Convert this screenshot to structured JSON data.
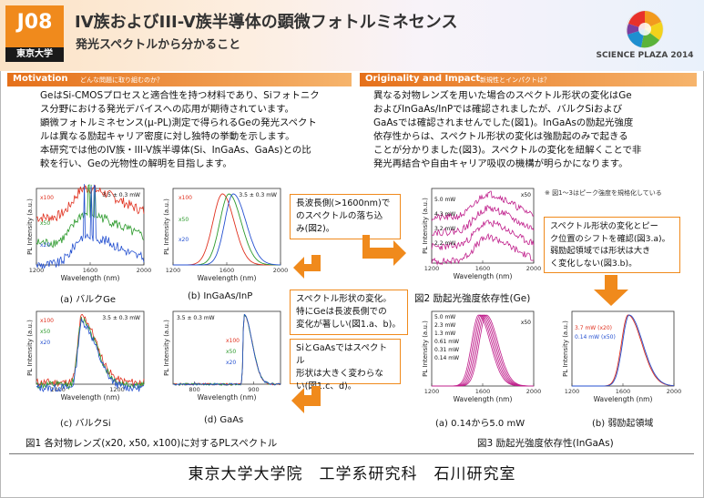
{
  "header": {
    "code": "J08",
    "university_badge": "東京大学",
    "title": "IV族およびIII-V族半導体の顕微フォトルミネセンス",
    "subtitle": "発光スペクトルから分かること",
    "logo_text": "SCIENCE PLAZA 2014"
  },
  "motivation": {
    "heading": "Motivation",
    "question": "どんな問題に取り組むのか？",
    "lines": [
      "GeはSi-CMOSプロセスと適合性を持つ材料であり、Siフォトニク",
      "ス分野における発光デバイスへの応用が期待されています。",
      "顕微フォトルミネセンス(μ-PL)測定で得られるGeの発光スペクト",
      "ルは異なる励起キャリア密度に対し独特の挙動を示します。",
      "本研究では他のIV族・III-V族半導体(Si、InGaAs、GaAs)との比",
      "較を行い、Geの光物性の解明を目指します。"
    ]
  },
  "originality": {
    "heading": "Originality and Impact",
    "question": "新規性とインパクトは？",
    "lines": [
      "異なる対物レンズを用いた場合のスペクトル形状の変化はGe",
      "およびInGaAs/InPでは確認されましたが、バルクSiおよび",
      "GaAsでは確認されませんでした(図1)。InGaAsの励起光強度",
      "依存性からは、スペクトル形状の変化は強励起のみで起きる",
      "ことが分かりました(図3)。スペクトルの変化を紐解くことで非",
      "発光再結合や自由キャリア吸収の機構が明らかになります。"
    ]
  },
  "common": {
    "ylabel": "PL Intensity (a.u.)",
    "xlabel": "Wavelength (nm)",
    "power_label": "3.5 ± 0.3 mW"
  },
  "fig1": {
    "caption": "図1 各対物レンズ(x20, x50, x100)に対するPLスペクトル",
    "panels": [
      {
        "id": "a",
        "caption": "(a) バルクGe",
        "xticks": [
          "1200",
          "1600",
          "2000"
        ],
        "series": [
          {
            "name": "x100",
            "color": "#e0301e"
          },
          {
            "name": "x50",
            "color": "#2c9a2c"
          },
          {
            "name": "x20",
            "color": "#2450d0"
          }
        ]
      },
      {
        "id": "b",
        "caption": "(b) InGaAs/InP",
        "xticks": [
          "1200",
          "1600",
          "2000"
        ],
        "series": [
          {
            "name": "x100",
            "color": "#e0301e"
          },
          {
            "name": "x50",
            "color": "#2c9a2c"
          },
          {
            "name": "x20",
            "color": "#2450d0"
          }
        ]
      },
      {
        "id": "c",
        "caption": "(c) バルクSi",
        "xticks": [
          "1000",
          "1200"
        ],
        "series": [
          {
            "name": "x100",
            "color": "#e0301e"
          },
          {
            "name": "x50",
            "color": "#2c9a2c"
          },
          {
            "name": "x20",
            "color": "#2450d0"
          }
        ]
      },
      {
        "id": "d",
        "caption": "(d) GaAs",
        "xticks": [
          "800",
          "900"
        ],
        "series": [
          {
            "name": "x100",
            "color": "#e0301e"
          },
          {
            "name": "x50",
            "color": "#2c9a2c"
          },
          {
            "name": "x20",
            "color": "#2450d0"
          }
        ]
      }
    ]
  },
  "fig2": {
    "caption": "図2 励起光強度依存性(Ge)",
    "xticks": [
      "1200",
      "1600",
      "2000"
    ],
    "objective": "x50",
    "powers": [
      "5.0 mW",
      "4.3 mW",
      "3.2 mW",
      "2.2 mW"
    ]
  },
  "fig3": {
    "caption": "図3 励起光強度依存性(InGaAs)",
    "note": "※ 図1～3はピーク強度を規格化している",
    "panel_a": {
      "caption": "(a) 0.14から5.0 mW",
      "xticks": [
        "1200",
        "1600",
        "2000"
      ],
      "objective": "x50",
      "powers": [
        "5.0 mW",
        "2.3 mW",
        "1.3 mW",
        "0.61 mW",
        "0.31 mW",
        "0.14 mW"
      ]
    },
    "panel_b": {
      "caption": "(b) 弱励起領域",
      "xticks": [
        "1200",
        "1600",
        "2000"
      ],
      "series": [
        {
          "name": "3.7 mW (x20)",
          "color": "#e0301e"
        },
        {
          "name": "0.14 mW (x50)",
          "color": "#2450d0"
        }
      ]
    }
  },
  "callouts": {
    "long_wave": [
      "長波長側(>1600nm)で",
      "のスペクトルの落ち込",
      "み(図2)。"
    ],
    "shape_change": [
      "スペクトル形状の変化。",
      "特にGeは長波長側での",
      "変化が著しい(図1.a、b)。"
    ],
    "si_gaas": [
      "SiとGaAsではスペクトル",
      "形状は大きく変わらな",
      "い(図1.c、d)。"
    ],
    "peak_shift": [
      "スペクトル形状の変化とピー",
      "ク位置のシフトを確認(図3.a)。",
      "弱励起領域では形状は大き",
      "く変化しない(図3.b)。"
    ]
  },
  "footer": "東京大学大学院　工学系研究科　石川研究室",
  "colors": {
    "accent": "#f08a1c",
    "red": "#e0301e",
    "green": "#2c9a2c",
    "blue": "#2450d0",
    "magenta": "#c0208c"
  }
}
